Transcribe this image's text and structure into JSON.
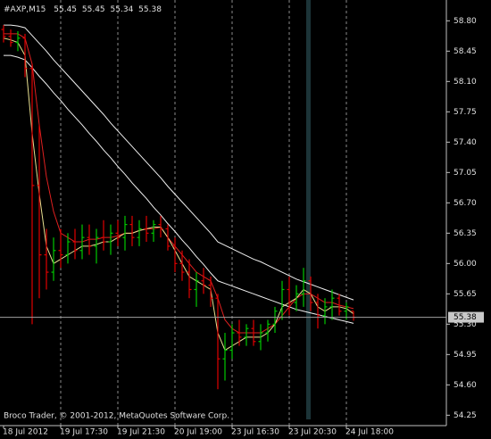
{
  "chart_data": {
    "type": "candlestick",
    "symbol": "#AXP,M15",
    "footer": "Broco Trader, © 2001-2012, MetaQuotes Software Corp.",
    "categories": [
      "18 Jul 2012",
      null,
      null,
      null,
      null,
      null,
      null,
      null,
      "19 Jul 17:30",
      null,
      null,
      null,
      null,
      null,
      null,
      null,
      "19 Jul 21:30",
      null,
      null,
      null,
      null,
      null,
      null,
      null,
      "20 Jul 19:00",
      null,
      null,
      null,
      null,
      null,
      null,
      null,
      "23 Jul 16:30",
      null,
      null,
      null,
      null,
      null,
      null,
      null,
      "23 Jul 20:30",
      null,
      null,
      null,
      null,
      null,
      null,
      null,
      "24 Jul 18:00",
      null
    ],
    "open": [
      58.7,
      58.62,
      58.55,
      58.6,
      58.25,
      56.9,
      56.1,
      55.9,
      56.15,
      56.1,
      56.25,
      56.15,
      56.3,
      56.2,
      56.3,
      56.25,
      56.35,
      56.3,
      56.45,
      56.3,
      56.4,
      56.35,
      56.45,
      56.4,
      56.2,
      56.0,
      55.9,
      55.7,
      55.8,
      55.75,
      55.6,
      54.9,
      55.0,
      55.2,
      55.15,
      55.25,
      55.1,
      55.2,
      55.3,
      55.45,
      55.7,
      55.55,
      55.65,
      55.8,
      55.55,
      55.4,
      55.5,
      55.6,
      55.45,
      55.45
    ],
    "high": [
      58.75,
      58.7,
      58.68,
      58.65,
      58.3,
      57.6,
      56.4,
      56.3,
      56.4,
      56.35,
      56.4,
      56.45,
      56.45,
      56.4,
      56.5,
      56.45,
      56.5,
      56.55,
      56.55,
      56.5,
      56.55,
      56.5,
      56.55,
      56.45,
      56.3,
      56.15,
      56.05,
      55.9,
      55.95,
      55.85,
      55.65,
      55.2,
      55.3,
      55.35,
      55.3,
      55.35,
      55.3,
      55.35,
      55.5,
      55.8,
      55.85,
      55.75,
      55.95,
      55.85,
      55.65,
      55.6,
      55.7,
      55.65,
      55.55,
      55.45
    ],
    "low": [
      58.55,
      58.5,
      58.45,
      58.15,
      55.3,
      55.6,
      55.7,
      55.8,
      55.95,
      56.0,
      56.05,
      56.05,
      56.1,
      56.0,
      56.15,
      56.1,
      56.2,
      56.15,
      56.2,
      56.2,
      56.25,
      56.25,
      56.3,
      56.15,
      55.9,
      55.8,
      55.6,
      55.5,
      55.65,
      55.5,
      54.55,
      54.65,
      54.9,
      55.05,
      55.05,
      55.05,
      55.0,
      55.1,
      55.2,
      55.35,
      55.4,
      55.45,
      55.5,
      55.45,
      55.25,
      55.3,
      55.35,
      55.4,
      55.35,
      55.34
    ],
    "close": [
      58.62,
      58.55,
      58.6,
      58.25,
      56.9,
      56.1,
      55.9,
      56.15,
      56.1,
      56.25,
      56.15,
      56.3,
      56.2,
      56.3,
      56.25,
      56.35,
      56.3,
      56.45,
      56.3,
      56.4,
      56.35,
      56.45,
      56.4,
      56.2,
      56.0,
      55.9,
      55.7,
      55.8,
      55.75,
      55.6,
      54.9,
      55.0,
      55.2,
      55.15,
      55.25,
      55.1,
      55.2,
      55.3,
      55.45,
      55.7,
      55.55,
      55.65,
      55.8,
      55.55,
      55.4,
      55.5,
      55.6,
      55.45,
      55.5,
      55.38
    ],
    "up_color": "#00c800",
    "down_color": "#e00000",
    "lines": [
      {
        "color": "#f0f0f0",
        "values": [
          58.75,
          58.75,
          58.74,
          58.72,
          58.63,
          58.54,
          58.45,
          58.35,
          58.26,
          58.17,
          58.08,
          57.99,
          57.9,
          57.81,
          57.72,
          57.62,
          57.53,
          57.44,
          57.35,
          57.26,
          57.17,
          57.08,
          56.99,
          56.89,
          56.8,
          56.71,
          56.62,
          56.53,
          56.44,
          56.35,
          56.25,
          56.21,
          56.17,
          56.13,
          56.09,
          56.05,
          56.02,
          55.98,
          55.94,
          55.9,
          55.86,
          55.82,
          55.79,
          55.76,
          55.73,
          55.7,
          55.67,
          55.64,
          55.61,
          55.58
        ]
      },
      {
        "color": "#f0f0f0",
        "values": [
          58.4,
          58.4,
          58.38,
          58.35,
          58.26,
          58.16,
          58.07,
          57.97,
          57.88,
          57.78,
          57.69,
          57.6,
          57.5,
          57.41,
          57.31,
          57.22,
          57.12,
          57.03,
          56.93,
          56.84,
          56.75,
          56.65,
          56.56,
          56.46,
          56.37,
          56.27,
          56.18,
          56.08,
          55.99,
          55.89,
          55.8,
          55.77,
          55.74,
          55.71,
          55.68,
          55.65,
          55.62,
          55.59,
          55.56,
          55.53,
          55.5,
          55.47,
          55.45,
          55.43,
          55.41,
          55.39,
          55.37,
          55.35,
          55.33,
          55.31
        ]
      },
      {
        "color": "#e02020",
        "values": [
          58.65,
          58.65,
          58.65,
          58.6,
          58.3,
          57.6,
          57.0,
          56.6,
          56.35,
          56.3,
          56.25,
          56.25,
          56.28,
          56.28,
          56.3,
          56.3,
          56.32,
          56.35,
          56.35,
          56.38,
          56.4,
          56.4,
          56.42,
          56.3,
          56.2,
          56.1,
          56.0,
          55.9,
          55.85,
          55.8,
          55.6,
          55.35,
          55.25,
          55.2,
          55.2,
          55.2,
          55.2,
          55.25,
          55.3,
          55.4,
          55.5,
          55.6,
          55.65,
          55.65,
          55.6,
          55.55,
          55.55,
          55.52,
          55.5,
          55.48
        ]
      },
      {
        "color": "#e8e090",
        "values": [
          58.6,
          58.58,
          58.55,
          58.4,
          57.5,
          56.8,
          56.2,
          56.0,
          56.05,
          56.1,
          56.15,
          56.2,
          56.2,
          56.22,
          56.25,
          56.25,
          56.3,
          56.35,
          56.35,
          56.38,
          56.4,
          56.42,
          56.42,
          56.3,
          56.15,
          56.0,
          55.85,
          55.8,
          55.75,
          55.7,
          55.2,
          55.0,
          55.05,
          55.1,
          55.15,
          55.15,
          55.15,
          55.2,
          55.3,
          55.5,
          55.55,
          55.6,
          55.7,
          55.65,
          55.5,
          55.45,
          55.5,
          55.5,
          55.48,
          55.42
        ]
      }
    ],
    "current_price": 55.38,
    "ylim": [
      54.13,
      59.04
    ],
    "yticks": [
      {
        "value": 58.8,
        "label": "58.80"
      },
      {
        "value": 58.45,
        "label": "58.45"
      },
      {
        "value": 58.1,
        "label": "58.10"
      },
      {
        "value": 57.75,
        "label": "57.75"
      },
      {
        "value": 57.4,
        "label": "57.40"
      },
      {
        "value": 57.05,
        "label": "57.05"
      },
      {
        "value": 56.7,
        "label": "56.70"
      },
      {
        "value": 56.35,
        "label": "56.35"
      },
      {
        "value": 56.0,
        "label": "56.00"
      },
      {
        "value": 55.65,
        "label": "55.65"
      },
      {
        "value": 55.3,
        "label": "55.30"
      },
      {
        "value": 54.95,
        "label": "54.95"
      },
      {
        "value": 54.6,
        "label": "54.60"
      },
      {
        "value": 54.25,
        "label": "54.25"
      }
    ],
    "grid": true
  }
}
